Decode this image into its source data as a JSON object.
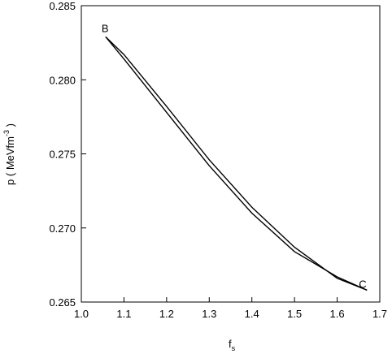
{
  "chart_data": {
    "type": "line",
    "xlabel": {
      "text": "f",
      "sub": "s"
    },
    "ylabel": {
      "text": "p ( MeVfm",
      "sup": "-3",
      "end": " )"
    },
    "annotations": [
      "B",
      "C"
    ],
    "x": [
      1.057,
      1.1,
      1.2,
      1.3,
      1.4,
      1.5,
      1.6,
      1.67
    ],
    "series": [
      {
        "color": "#000000",
        "values": [
          0.2829,
          0.2817,
          0.2782,
          0.2746,
          0.2714,
          0.2687,
          0.2666,
          0.2658
        ]
      },
      {
        "color": "#000000",
        "values": [
          0.2829,
          0.2814,
          0.2778,
          0.2742,
          0.271,
          0.2684,
          0.2667,
          0.2658
        ]
      }
    ],
    "xlim": [
      1.0,
      1.7
    ],
    "xticks": [
      {
        "value": 1.0,
        "label": "1.0"
      },
      {
        "value": 1.1,
        "label": "1.1"
      },
      {
        "value": 1.2,
        "label": "1.2"
      },
      {
        "value": 1.3,
        "label": "1.3"
      },
      {
        "value": 1.4,
        "label": "1.4"
      },
      {
        "value": 1.5,
        "label": "1.5"
      },
      {
        "value": 1.6,
        "label": "1.6"
      },
      {
        "value": 1.7,
        "label": "1.7"
      }
    ],
    "ylim": [
      0.265,
      0.285
    ],
    "yticks": [
      0.265,
      {
        "value": 0.27,
        "label": "0.270"
      },
      0.275,
      {
        "value": 0.28,
        "label": "0.280"
      },
      0.285
    ],
    "grid": false
  }
}
